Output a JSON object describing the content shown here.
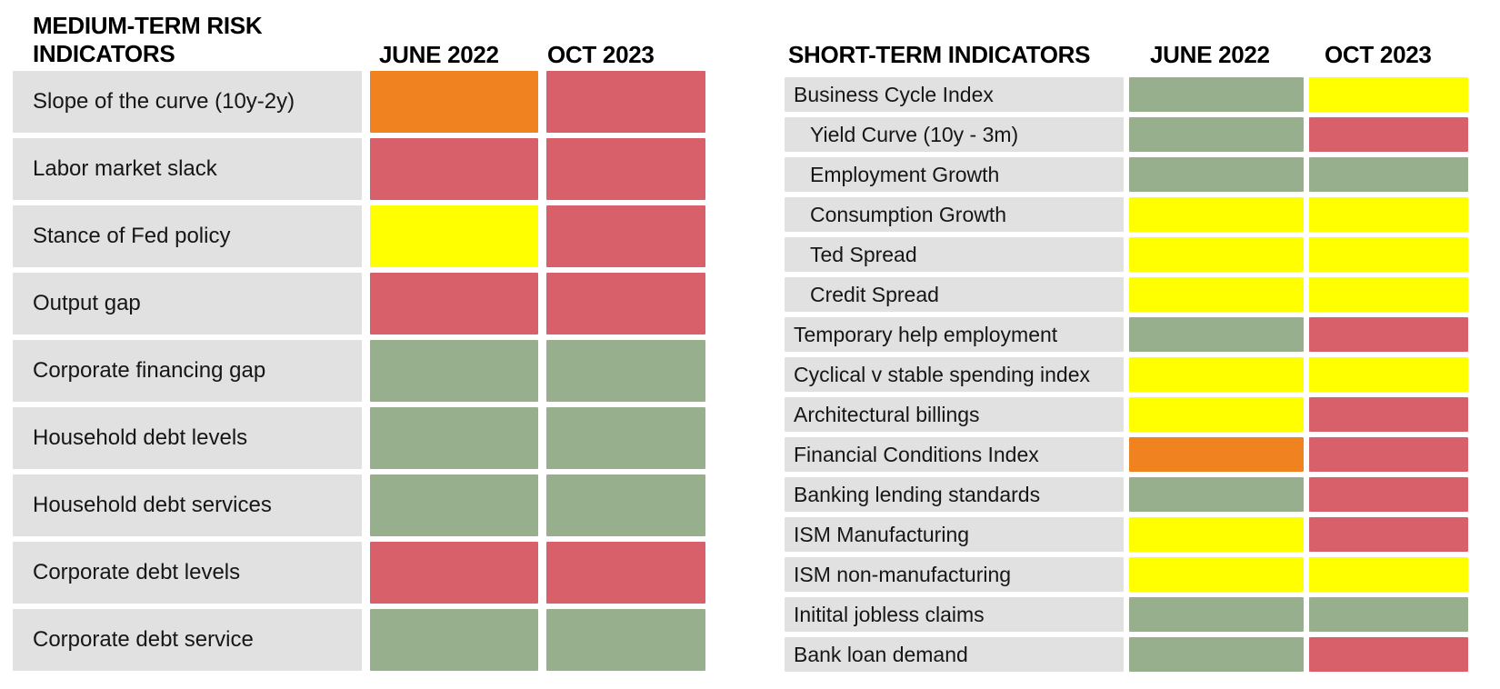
{
  "colors": {
    "green": "#97AF8D",
    "yellow": "#FFFF00",
    "orange": "#F08220",
    "red": "#D8606A",
    "row_label_bg": "#E1E1E1",
    "header_text": "#000000",
    "background": "#FFFFFF"
  },
  "chart_data": [
    {
      "id": "medium_term",
      "type": "heatmap",
      "title": "MEDIUM-TERM RISK INDICATORS",
      "title_lines": [
        "MEDIUM-TERM RISK",
        "INDICATORS"
      ],
      "columns": [
        "JUNE 2022",
        "OCT 2023"
      ],
      "legend_position": "none",
      "grid": false,
      "rows": [
        {
          "label": "Slope of the curve (10y-2y)",
          "indent": false,
          "values": [
            "orange",
            "red"
          ]
        },
        {
          "label": "Labor market slack",
          "indent": false,
          "values": [
            "red",
            "red"
          ]
        },
        {
          "label": "Stance of Fed policy",
          "indent": false,
          "values": [
            "yellow",
            "red"
          ]
        },
        {
          "label": "Output gap",
          "indent": false,
          "values": [
            "red",
            "red"
          ]
        },
        {
          "label": "Corporate financing gap",
          "indent": false,
          "values": [
            "green",
            "green"
          ]
        },
        {
          "label": "Household debt levels",
          "indent": false,
          "values": [
            "green",
            "green"
          ]
        },
        {
          "label": "Household debt services",
          "indent": false,
          "values": [
            "green",
            "green"
          ]
        },
        {
          "label": "Corporate debt levels",
          "indent": false,
          "values": [
            "red",
            "red"
          ]
        },
        {
          "label": "Corporate debt service",
          "indent": false,
          "values": [
            "green",
            "green"
          ]
        }
      ]
    },
    {
      "id": "short_term",
      "type": "heatmap",
      "title": "SHORT-TERM INDICATORS",
      "title_lines": [
        "SHORT-TERM INDICATORS"
      ],
      "columns": [
        "JUNE 2022",
        "OCT 2023"
      ],
      "legend_position": "none",
      "grid": false,
      "rows": [
        {
          "label": "Business Cycle Index",
          "indent": false,
          "values": [
            "green",
            "yellow"
          ]
        },
        {
          "label": "Yield Curve (10y - 3m)",
          "indent": true,
          "values": [
            "green",
            "red"
          ]
        },
        {
          "label": "Employment Growth",
          "indent": true,
          "values": [
            "green",
            "green"
          ]
        },
        {
          "label": "Consumption Growth",
          "indent": true,
          "values": [
            "yellow",
            "yellow"
          ]
        },
        {
          "label": "Ted Spread",
          "indent": true,
          "values": [
            "yellow",
            "yellow"
          ]
        },
        {
          "label": "Credit Spread",
          "indent": true,
          "values": [
            "yellow",
            "yellow"
          ]
        },
        {
          "label": "Temporary help employment",
          "indent": false,
          "values": [
            "green",
            "red"
          ]
        },
        {
          "label": "Cyclical v stable spending index",
          "indent": false,
          "values": [
            "yellow",
            "yellow"
          ]
        },
        {
          "label": "Architectural billings",
          "indent": false,
          "values": [
            "yellow",
            "red"
          ]
        },
        {
          "label": "Financial Conditions Index",
          "indent": false,
          "values": [
            "orange",
            "red"
          ]
        },
        {
          "label": "Banking lending standards",
          "indent": false,
          "values": [
            "green",
            "red"
          ]
        },
        {
          "label": "ISM Manufacturing",
          "indent": false,
          "values": [
            "yellow",
            "red"
          ]
        },
        {
          "label": "ISM non-manufacturing",
          "indent": false,
          "values": [
            "yellow",
            "yellow"
          ]
        },
        {
          "label": "Initital jobless claims",
          "indent": false,
          "values": [
            "green",
            "green"
          ]
        },
        {
          "label": "Bank loan demand",
          "indent": false,
          "values": [
            "green",
            "red"
          ]
        }
      ]
    }
  ]
}
